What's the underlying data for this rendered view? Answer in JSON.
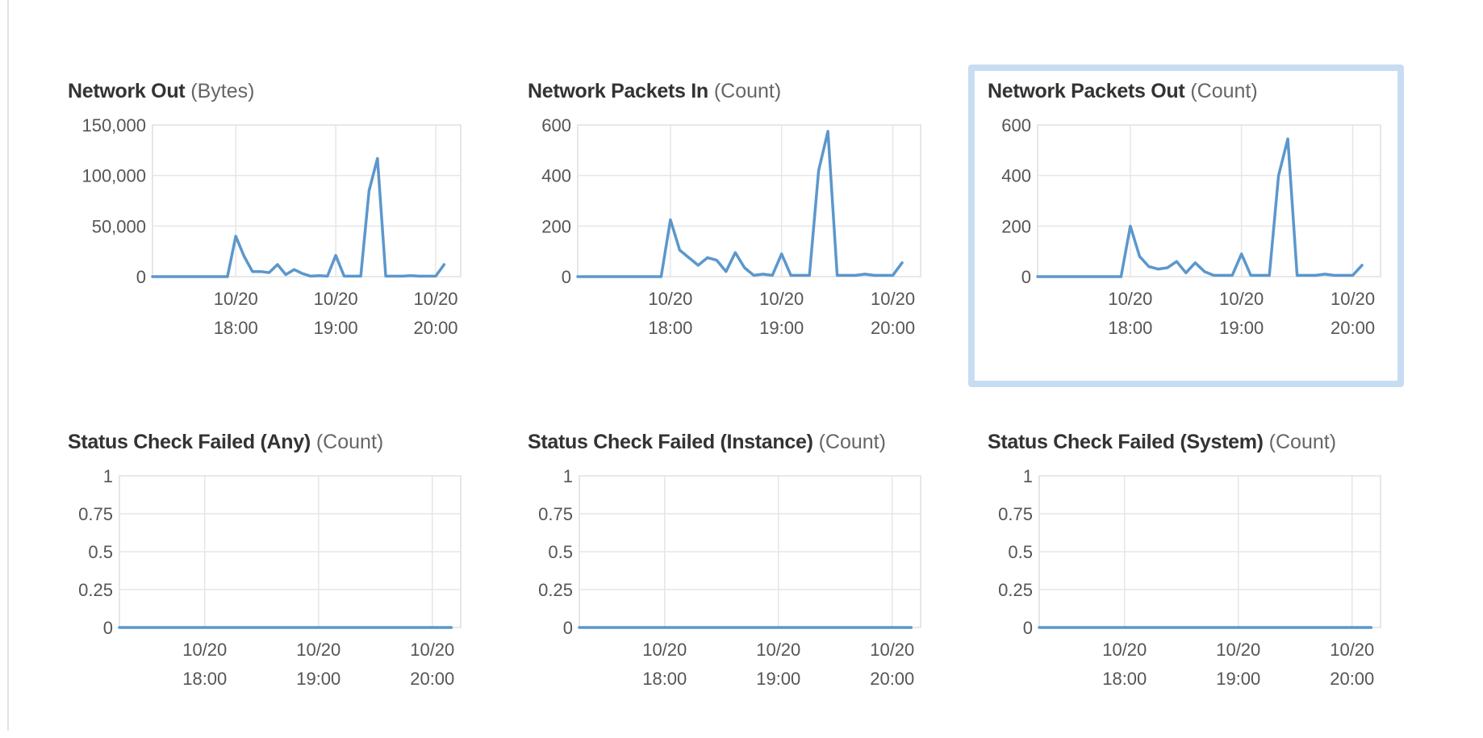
{
  "colors": {
    "series": "#5b97cc",
    "selected_border": "#c8dcf4",
    "grid": "#e6e6e6"
  },
  "panels": [
    {
      "metric": "Network Out",
      "unit": "(Bytes)",
      "selected": false,
      "chart_data": {
        "type": "line",
        "title": "Network Out (Bytes)",
        "xlabel": "",
        "ylabel": "",
        "ylim": [
          0,
          150000
        ],
        "yticks": [
          0,
          50000,
          100000,
          150000
        ],
        "ytick_labels": [
          "0",
          "50,000",
          "100,000",
          "150,000"
        ],
        "xlim": [
          "17:10",
          "20:15"
        ],
        "xticks": [
          {
            "value": "18:00",
            "date": "10/20",
            "time": "18:00"
          },
          {
            "value": "19:00",
            "date": "10/20",
            "time": "19:00"
          },
          {
            "value": "20:00",
            "date": "10/20",
            "time": "20:00"
          }
        ],
        "grid": true,
        "series": [
          {
            "x": [
              "17:10",
              "17:55",
              "18:00",
              "18:05",
              "18:10",
              "18:15",
              "18:20",
              "18:25",
              "18:30",
              "18:35",
              "18:40",
              "18:45",
              "18:50",
              "18:55",
              "19:00",
              "19:05",
              "19:10",
              "19:15",
              "19:20",
              "19:25",
              "19:30",
              "19:35",
              "19:40",
              "19:45",
              "19:50",
              "19:55",
              "20:00",
              "20:05"
            ],
            "values": [
              0,
              0,
              40000,
              20000,
              5000,
              5000,
              4000,
              12000,
              2000,
              7000,
              3000,
              500,
              1000,
              500,
              21000,
              500,
              500,
              500,
              85000,
              117000,
              500,
              500,
              500,
              1000,
              500,
              500,
              500,
              12000
            ]
          }
        ]
      }
    },
    {
      "metric": "Network Packets In",
      "unit": "(Count)",
      "selected": false,
      "chart_data": {
        "type": "line",
        "title": "Network Packets In (Count)",
        "xlabel": "",
        "ylabel": "",
        "ylim": [
          0,
          600
        ],
        "yticks": [
          0,
          200,
          400,
          600
        ],
        "ytick_labels": [
          "0",
          "200",
          "400",
          "600"
        ],
        "xlim": [
          "17:10",
          "20:15"
        ],
        "xticks": [
          {
            "value": "18:00",
            "date": "10/20",
            "time": "18:00"
          },
          {
            "value": "19:00",
            "date": "10/20",
            "time": "19:00"
          },
          {
            "value": "20:00",
            "date": "10/20",
            "time": "20:00"
          }
        ],
        "grid": true,
        "series": [
          {
            "x": [
              "17:10",
              "17:55",
              "18:00",
              "18:05",
              "18:10",
              "18:15",
              "18:20",
              "18:25",
              "18:30",
              "18:35",
              "18:40",
              "18:45",
              "18:50",
              "18:55",
              "19:00",
              "19:05",
              "19:10",
              "19:15",
              "19:20",
              "19:25",
              "19:30",
              "19:35",
              "19:40",
              "19:45",
              "19:50",
              "19:55",
              "20:00",
              "20:05"
            ],
            "values": [
              0,
              0,
              225,
              105,
              75,
              45,
              75,
              65,
              20,
              95,
              35,
              5,
              10,
              5,
              90,
              5,
              5,
              5,
              420,
              575,
              5,
              5,
              5,
              10,
              5,
              5,
              5,
              55
            ]
          }
        ]
      }
    },
    {
      "metric": "Network Packets Out",
      "unit": "(Count)",
      "selected": true,
      "chart_data": {
        "type": "line",
        "title": "Network Packets Out (Count)",
        "xlabel": "",
        "ylabel": "",
        "ylim": [
          0,
          600
        ],
        "yticks": [
          0,
          200,
          400,
          600
        ],
        "ytick_labels": [
          "0",
          "200",
          "400",
          "600"
        ],
        "xlim": [
          "17:10",
          "20:15"
        ],
        "xticks": [
          {
            "value": "18:00",
            "date": "10/20",
            "time": "18:00"
          },
          {
            "value": "19:00",
            "date": "10/20",
            "time": "19:00"
          },
          {
            "value": "20:00",
            "date": "10/20",
            "time": "20:00"
          }
        ],
        "grid": true,
        "series": [
          {
            "x": [
              "17:10",
              "17:55",
              "18:00",
              "18:05",
              "18:10",
              "18:15",
              "18:20",
              "18:25",
              "18:30",
              "18:35",
              "18:40",
              "18:45",
              "18:50",
              "18:55",
              "19:00",
              "19:05",
              "19:10",
              "19:15",
              "19:20",
              "19:25",
              "19:30",
              "19:35",
              "19:40",
              "19:45",
              "19:50",
              "19:55",
              "20:00",
              "20:05"
            ],
            "values": [
              0,
              0,
              200,
              80,
              40,
              30,
              35,
              60,
              15,
              55,
              20,
              5,
              5,
              5,
              90,
              5,
              5,
              5,
              400,
              545,
              5,
              5,
              5,
              10,
              5,
              5,
              5,
              45
            ]
          }
        ]
      }
    },
    {
      "metric": "Status Check Failed (Any)",
      "unit": "(Count)",
      "selected": false,
      "chart_data": {
        "type": "line",
        "title": "Status Check Failed (Any) (Count)",
        "xlabel": "",
        "ylabel": "",
        "ylim": [
          0,
          1
        ],
        "yticks": [
          0,
          0.25,
          0.5,
          0.75,
          1
        ],
        "ytick_labels": [
          "0",
          "0.25",
          "0.5",
          "0.75",
          "1"
        ],
        "xlim": [
          "17:15",
          "20:15"
        ],
        "xticks": [
          {
            "value": "18:00",
            "date": "10/20",
            "time": "18:00"
          },
          {
            "value": "19:00",
            "date": "10/20",
            "time": "19:00"
          },
          {
            "value": "20:00",
            "date": "10/20",
            "time": "20:00"
          }
        ],
        "grid": true,
        "series": [
          {
            "x": [
              "17:15",
              "20:10"
            ],
            "values": [
              0,
              0
            ]
          }
        ]
      }
    },
    {
      "metric": "Status Check Failed (Instance)",
      "unit": "(Count)",
      "selected": false,
      "chart_data": {
        "type": "line",
        "title": "Status Check Failed (Instance) (Count)",
        "xlabel": "",
        "ylabel": "",
        "ylim": [
          0,
          1
        ],
        "yticks": [
          0,
          0.25,
          0.5,
          0.75,
          1
        ],
        "ytick_labels": [
          "0",
          "0.25",
          "0.5",
          "0.75",
          "1"
        ],
        "xlim": [
          "17:15",
          "20:15"
        ],
        "xticks": [
          {
            "value": "18:00",
            "date": "10/20",
            "time": "18:00"
          },
          {
            "value": "19:00",
            "date": "10/20",
            "time": "19:00"
          },
          {
            "value": "20:00",
            "date": "10/20",
            "time": "20:00"
          }
        ],
        "grid": true,
        "series": [
          {
            "x": [
              "17:15",
              "20:10"
            ],
            "values": [
              0,
              0
            ]
          }
        ]
      }
    },
    {
      "metric": "Status Check Failed (System)",
      "unit": "(Count)",
      "selected": false,
      "chart_data": {
        "type": "line",
        "title": "Status Check Failed (System) (Count)",
        "xlabel": "",
        "ylabel": "",
        "ylim": [
          0,
          1
        ],
        "yticks": [
          0,
          0.25,
          0.5,
          0.75,
          1
        ],
        "ytick_labels": [
          "0",
          "0.25",
          "0.5",
          "0.75",
          "1"
        ],
        "xlim": [
          "17:15",
          "20:15"
        ],
        "xticks": [
          {
            "value": "18:00",
            "date": "10/20",
            "time": "18:00"
          },
          {
            "value": "19:00",
            "date": "10/20",
            "time": "19:00"
          },
          {
            "value": "20:00",
            "date": "10/20",
            "time": "20:00"
          }
        ],
        "grid": true,
        "series": [
          {
            "x": [
              "17:15",
              "20:10"
            ],
            "values": [
              0,
              0
            ]
          }
        ]
      }
    }
  ]
}
